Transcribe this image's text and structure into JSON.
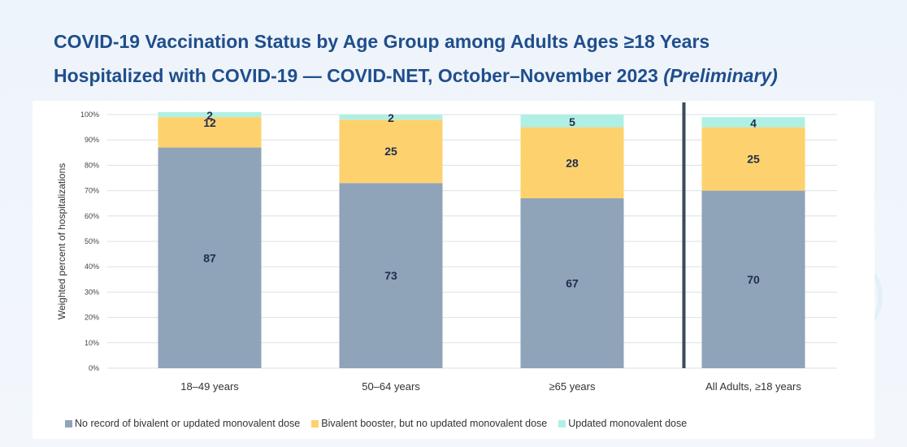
{
  "title": {
    "line1": "COVID-19 Vaccination Status by Age Group among Adults Ages ≥18 Years",
    "line2_main": "Hospitalized with COVID-19 — COVID-NET, October–November 2023 ",
    "line2_italic": "(Preliminary)"
  },
  "colors": {
    "no_record": "#8fa3b9",
    "bivalent": "#fdd26e",
    "updated": "#b0f0e4",
    "title": "#1f4e8c",
    "divider": "#3b4a5e",
    "grid": "#d9e1ea"
  },
  "chart_data": {
    "type": "bar",
    "stacked": true,
    "categories": [
      "18–49 years",
      "50–64 years",
      "≥65 years",
      "All Adults, ≥18 years"
    ],
    "series": [
      {
        "name": "No record of  bivalent or updated monovalent dose",
        "values": [
          87,
          73,
          67,
          70
        ],
        "color": "#8fa3b9"
      },
      {
        "name": "Bivalent booster, but no updated monovalent dose",
        "values": [
          12,
          25,
          28,
          25
        ],
        "color": "#fdd26e"
      },
      {
        "name": "Updated monovalent dose",
        "values": [
          2,
          2,
          5,
          4
        ],
        "color": "#b0f0e4"
      }
    ],
    "ylabel": "Weighted percent of hospitalizations",
    "xlabel": "",
    "ylim": [
      0,
      100
    ],
    "yticks": [
      "0%",
      "10%",
      "20%",
      "30%",
      "40%",
      "50%",
      "60%",
      "70%",
      "80%",
      "90%",
      "100%"
    ],
    "grid": true,
    "legend_position": "bottom",
    "divider_before_category": 3
  }
}
